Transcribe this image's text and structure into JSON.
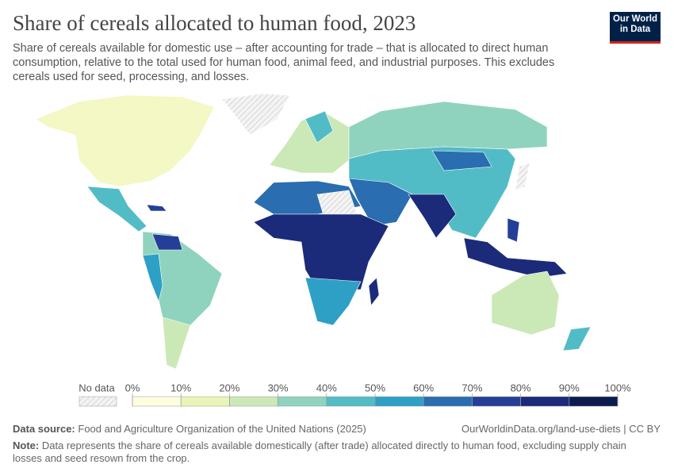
{
  "header": {
    "title": "Share of cereals allocated to human food, 2023",
    "subtitle": "Share of cereals available for domestic use – after accounting for trade – that is allocated to direct human consumption, relative to the total used for human food, animal feed, and industrial purposes. This excludes cereals used for seed, processing, and losses.",
    "logo": [
      "Our World",
      "in Data"
    ]
  },
  "legend": {
    "no_data": "No data",
    "ticks": [
      {
        "value": 0,
        "label": "0%"
      },
      {
        "value": 10,
        "label": "10%"
      },
      {
        "value": 20,
        "label": "20%"
      },
      {
        "value": 30,
        "label": "30%"
      },
      {
        "value": 40,
        "label": "40%"
      },
      {
        "value": 50,
        "label": "50%"
      },
      {
        "value": 60,
        "label": "60%"
      },
      {
        "value": 70,
        "label": "70%"
      },
      {
        "value": 80,
        "label": "80%"
      },
      {
        "value": 90,
        "label": "90%"
      },
      {
        "value": 100,
        "label": "100%"
      }
    ],
    "colors": [
      "#fefde0",
      "#e9f5b8",
      "#cbe8b7",
      "#8fd3bf",
      "#52bcc6",
      "#2ea0c6",
      "#2a6db0",
      "#253f98",
      "#1b2b7a",
      "#0c1b4e"
    ]
  },
  "footer": {
    "source_label": "Data source:",
    "source": "Food and Agriculture Organization of the United Nations (2025)",
    "url": "OurWorldinData.org/land-use-diets | CC BY",
    "note_label": "Note:",
    "note": "Data represents the share of cereals available domestically (after trade) allocated directly to human food, excluding supply chain losses and seed resown from the crop."
  }
}
